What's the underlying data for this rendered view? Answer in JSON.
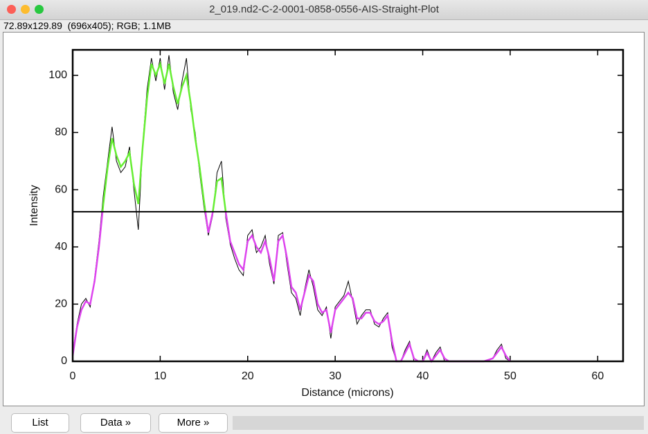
{
  "window": {
    "title": "2_019.nd2-C-2-0001-0858-0556-AIS-Straight-Plot",
    "info": "72.89x129.89  (696x405); RGB; 1.1MB",
    "buttons": [
      "List",
      "Data »",
      "More »"
    ]
  },
  "chart_data": {
    "type": "line",
    "xlabel": "Distance (microns)",
    "ylabel": "Intensity",
    "xlim": [
      0,
      62.9
    ],
    "ylim": [
      0,
      108.9
    ],
    "xticks": [
      0,
      10,
      20,
      30,
      40,
      50,
      60
    ],
    "yticks": [
      0,
      20,
      40,
      60,
      80,
      100
    ],
    "threshold": 52.3,
    "threshold_color": "#000000",
    "x": [
      0,
      0.5,
      1,
      1.5,
      2,
      2.5,
      3,
      3.5,
      4,
      4.5,
      5,
      5.5,
      6,
      6.5,
      7,
      7.5,
      8,
      8.5,
      9,
      9.5,
      10,
      10.5,
      11,
      11.5,
      12,
      12.5,
      13,
      13.5,
      14,
      14.5,
      15,
      15.5,
      16,
      16.5,
      17,
      17.5,
      18,
      18.5,
      19,
      19.5,
      20,
      20.5,
      21,
      21.5,
      22,
      22.5,
      23,
      23.5,
      24,
      24.5,
      25,
      25.5,
      26,
      26.5,
      27,
      27.5,
      28,
      28.5,
      29,
      29.5,
      30,
      30.5,
      31,
      31.5,
      32,
      32.5,
      33,
      33.5,
      34,
      34.5,
      35,
      35.5,
      36,
      36.5,
      37,
      37.5,
      38,
      38.5,
      39,
      39.5,
      40,
      40.5,
      41,
      41.5,
      42,
      42.5,
      43,
      43.5,
      44,
      44.5,
      45,
      45.5,
      46,
      46.5,
      47,
      47.5,
      48,
      48.5,
      49,
      49.5,
      50
    ],
    "series": [
      {
        "color": "#000000",
        "values": [
          3,
          13,
          20,
          22,
          19,
          29,
          42,
          58,
          70,
          82,
          70,
          66,
          68,
          75,
          60,
          46,
          76,
          95,
          106,
          98,
          106,
          95,
          107,
          94,
          88,
          98,
          106,
          88,
          80,
          66,
          54,
          44,
          51,
          66,
          70,
          50,
          41,
          36,
          32,
          30,
          44,
          46,
          38,
          40,
          44,
          34,
          27,
          44,
          45,
          34,
          24,
          22,
          16,
          25,
          32,
          26,
          18,
          16,
          19,
          8,
          19,
          21,
          23,
          28,
          21,
          13,
          16,
          18,
          18,
          13,
          12,
          15,
          17,
          5,
          0,
          0,
          4,
          7,
          0,
          0,
          0,
          4,
          0,
          3,
          5,
          0,
          0,
          0,
          0,
          0,
          0,
          0,
          0,
          0,
          0,
          0.5,
          1,
          4,
          6,
          1,
          0
        ]
      },
      {
        "color": "#dd44ee",
        "above_color": "#66ee33",
        "values": [
          2,
          12,
          18,
          21,
          20,
          28,
          40,
          55,
          68,
          78,
          72,
          68,
          70,
          73,
          62,
          55,
          75,
          92,
          104,
          100,
          104,
          97,
          104,
          96,
          90,
          96,
          100,
          90,
          78,
          68,
          56,
          45,
          52,
          63,
          64,
          52,
          42,
          38,
          34,
          32,
          42,
          44,
          40,
          38,
          42,
          36,
          28,
          42,
          44,
          36,
          26,
          24,
          18,
          24,
          30,
          28,
          20,
          17,
          18,
          10,
          18,
          20,
          22,
          24,
          22,
          15,
          15,
          17,
          17,
          14,
          13,
          14,
          16,
          7,
          0,
          0,
          3,
          6,
          1,
          0,
          0,
          3,
          0,
          2,
          4,
          1,
          0,
          0,
          0,
          0,
          0,
          0,
          0,
          0,
          0,
          0.5,
          1,
          3,
          5,
          2,
          0
        ]
      }
    ]
  }
}
